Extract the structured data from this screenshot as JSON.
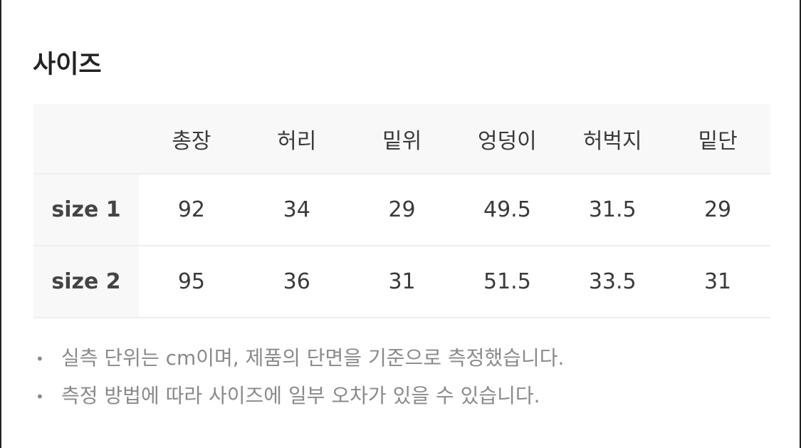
{
  "title": "사이즈",
  "table": {
    "headers": [
      "",
      "총장",
      "허리",
      "밑위",
      "엉덩이",
      "허벅지",
      "밑단"
    ],
    "rows": [
      {
        "label": "size 1",
        "values": [
          "92",
          "34",
          "29",
          "49.5",
          "31.5",
          "29"
        ]
      },
      {
        "label": "size 2",
        "values": [
          "95",
          "36",
          "31",
          "51.5",
          "33.5",
          "31"
        ]
      }
    ]
  },
  "notes": [
    "실측 단위는 cm이며, 제품의 단면을 기준으로 측정했습니다.",
    "측정 방법에 따라 사이즈에 일부 오차가 있을 수 있습니다."
  ],
  "bullet": "•"
}
